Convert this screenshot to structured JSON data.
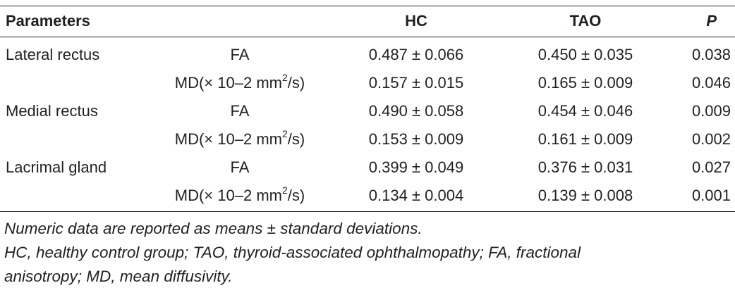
{
  "table": {
    "headers": {
      "parameters": "Parameters",
      "hc": "HC",
      "tao": "TAO",
      "p": "P"
    },
    "rows": [
      {
        "group": "Lateral rectus",
        "metric": "FA",
        "metric_sup": "",
        "metric_tail": "",
        "hc": "0.487 ± 0.066",
        "tao": "0.450 ± 0.035",
        "p": "0.038"
      },
      {
        "group": "",
        "metric": "MD(× 10–2 mm",
        "metric_sup": "2",
        "metric_tail": "/s)",
        "hc": "0.157 ± 0.015",
        "tao": "0.165 ± 0.009",
        "p": "0.046"
      },
      {
        "group": "Medial rectus",
        "metric": "FA",
        "metric_sup": "",
        "metric_tail": "",
        "hc": "0.490 ± 0.058",
        "tao": "0.454 ± 0.046",
        "p": "0.009"
      },
      {
        "group": "",
        "metric": "MD(× 10–2 mm",
        "metric_sup": "2",
        "metric_tail": "/s)",
        "hc": "0.153 ± 0.009",
        "tao": "0.161 ± 0.009",
        "p": "0.002"
      },
      {
        "group": "Lacrimal gland",
        "metric": "FA",
        "metric_sup": "",
        "metric_tail": "",
        "hc": "0.399 ± 0.049",
        "tao": "0.376 ± 0.031",
        "p": "0.027"
      },
      {
        "group": "",
        "metric": "MD(× 10–2 mm",
        "metric_sup": "2",
        "metric_tail": "/s)",
        "hc": "0.134 ± 0.004",
        "tao": "0.139 ± 0.008",
        "p": "0.001"
      }
    ]
  },
  "footnotes": {
    "line1": "Numeric data are reported as means ± standard deviations.",
    "line2": "HC, healthy control group; TAO, thyroid-associated ophthalmopathy; FA, fractional",
    "line3": "anisotropy; MD, mean diffusivity."
  }
}
